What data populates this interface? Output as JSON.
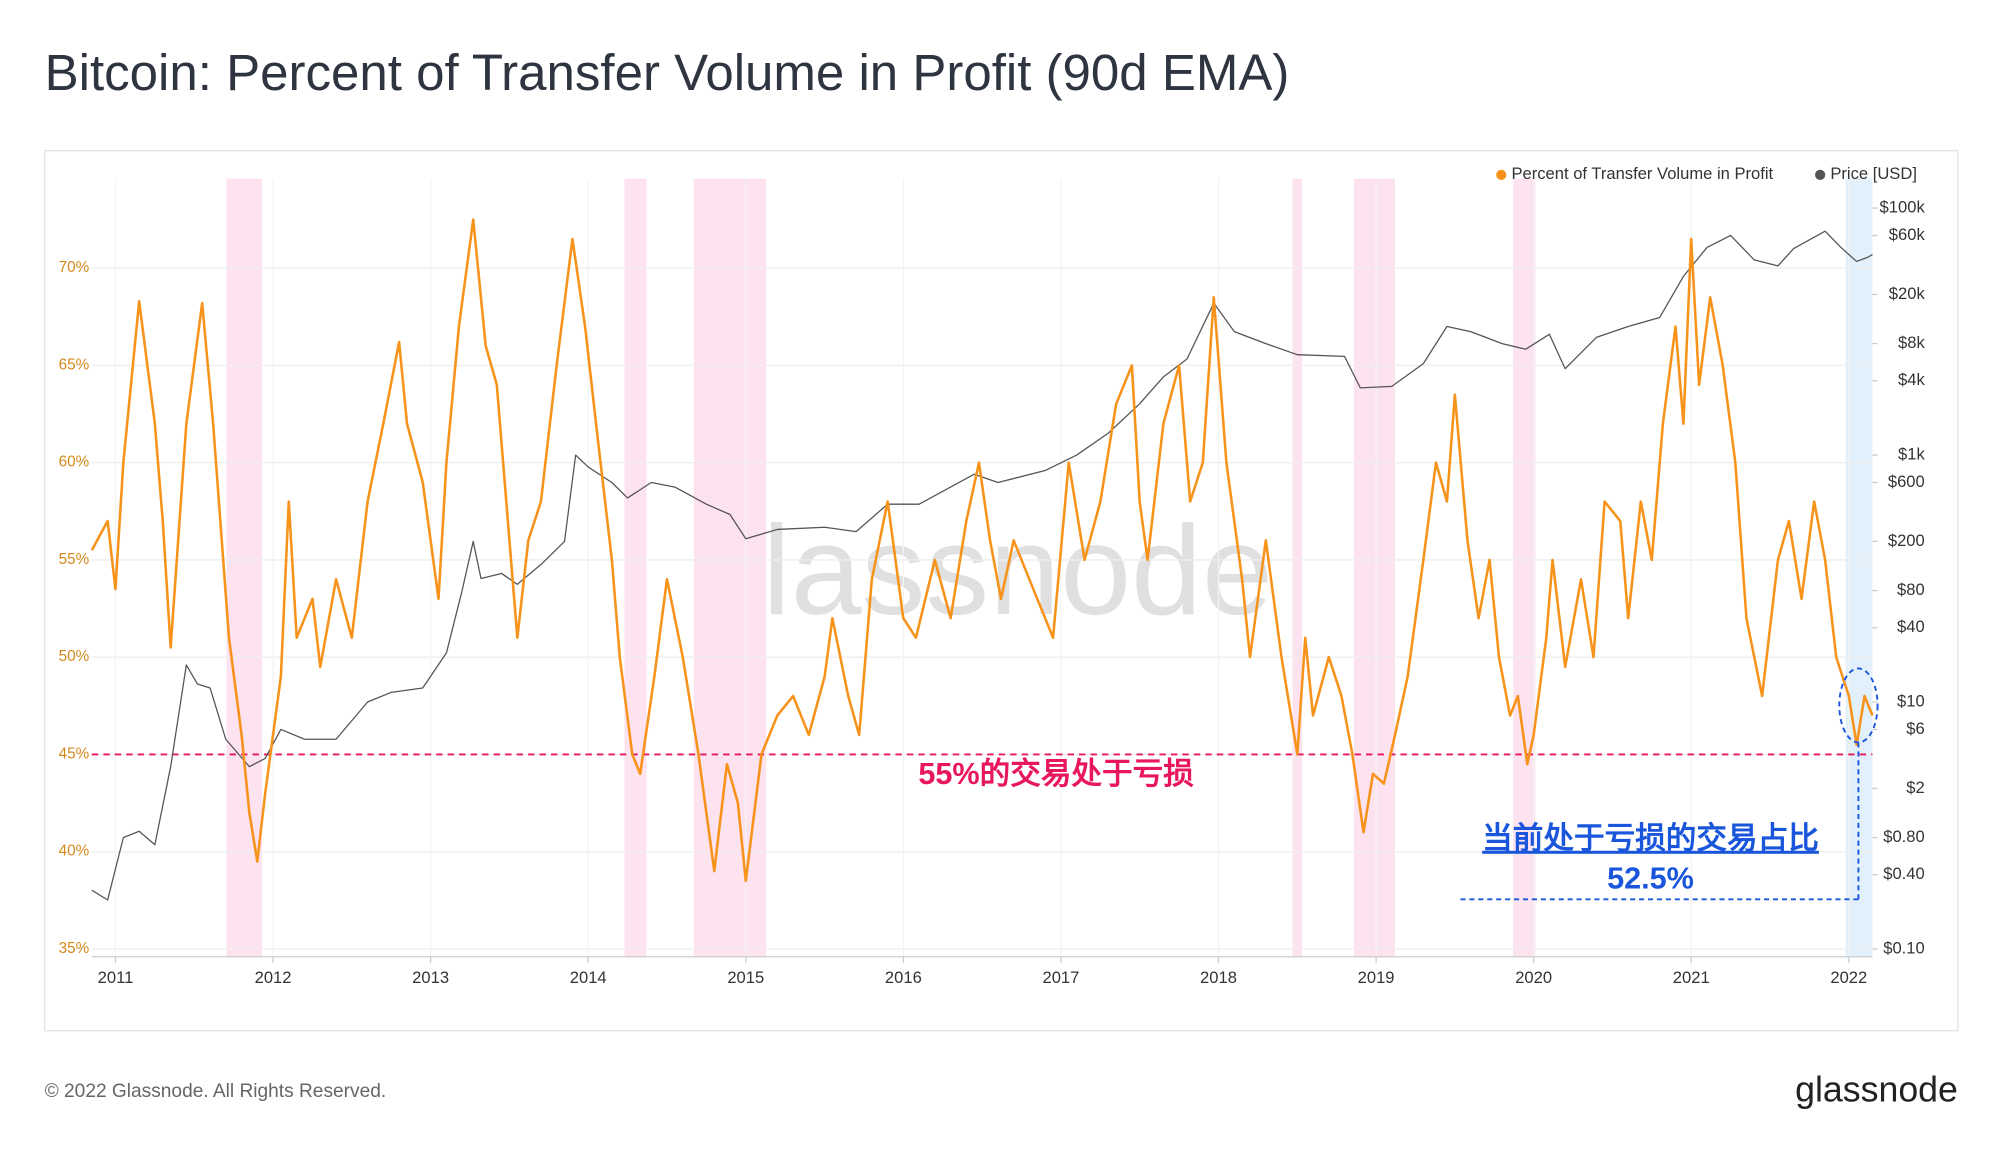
{
  "title": "Bitcoin: Percent of Transfer Volume in Profit (90d EMA)",
  "footer": {
    "copyright": "© 2022 Glassnode. All Rights Reserved.",
    "logo": "glassnode"
  },
  "chart_data": {
    "type": "line",
    "watermark": "glassnode",
    "xlim": [
      2010.85,
      2022.15
    ],
    "xticks": [
      2011,
      2012,
      2013,
      2014,
      2015,
      2016,
      2017,
      2018,
      2019,
      2020,
      2021,
      2022
    ],
    "ylim": [
      34.6,
      74.6
    ],
    "yticks": [
      {
        "value": 35,
        "label": "35%"
      },
      {
        "value": 40,
        "label": "40%"
      },
      {
        "value": 45,
        "label": "45%"
      },
      {
        "value": 50,
        "label": "50%"
      },
      {
        "value": 55,
        "label": "55%"
      },
      {
        "value": 60,
        "label": "60%"
      },
      {
        "value": 65,
        "label": "65%"
      },
      {
        "value": 70,
        "label": "70%"
      }
    ],
    "y2lim": [
      0.0867,
      173000
    ],
    "y2log": true,
    "y2ticks": [
      {
        "value": 0.1,
        "label": "$0.10"
      },
      {
        "value": 0.4,
        "label": "$0.40"
      },
      {
        "value": 0.8,
        "label": "$0.80"
      },
      {
        "value": 2,
        "label": "$2"
      },
      {
        "value": 6,
        "label": "$6"
      },
      {
        "value": 10,
        "label": "$10"
      },
      {
        "value": 40,
        "label": "$40"
      },
      {
        "value": 80,
        "label": "$80"
      },
      {
        "value": 200,
        "label": "$200"
      },
      {
        "value": 600,
        "label": "$600"
      },
      {
        "value": 1000,
        "label": "$1k"
      },
      {
        "value": 4000,
        "label": "$4k"
      },
      {
        "value": 8000,
        "label": "$8k"
      },
      {
        "value": 20000,
        "label": "$20k"
      },
      {
        "value": 60000,
        "label": "$60k"
      },
      {
        "value": 100000,
        "label": "$100k"
      }
    ],
    "grid": true,
    "legend": "top-right",
    "bands": [
      {
        "range": [
          2011.705,
          2011.93
        ],
        "color": "#fde2ef"
      },
      {
        "range": [
          2014.23,
          2014.37
        ],
        "color": "#fde2ef"
      },
      {
        "range": [
          2014.67,
          2015.13
        ],
        "color": "#fde2ef"
      },
      {
        "range": [
          2018.47,
          2018.53
        ],
        "color": "#fde2ef"
      },
      {
        "range": [
          2018.86,
          2019.12
        ],
        "color": "#fde2ef"
      },
      {
        "range": [
          2019.87,
          2020.01
        ],
        "color": "#fde2ef"
      },
      {
        "range": [
          2021.98,
          2022.15
        ],
        "color": "#e1f0fb"
      }
    ],
    "hline": {
      "value": 45,
      "label": "55%的交易处于亏损",
      "color": "#e8175d"
    },
    "callout": {
      "lines": [
        "当前处于亏损的交易占比",
        "52.5%"
      ],
      "color": "#1a56db"
    },
    "series": [
      {
        "name": "Percent of Transfer Volume in Profit",
        "color": "#f7931a",
        "x": [
          2010.85,
          2010.95,
          2011.0,
          2011.05,
          2011.15,
          2011.25,
          2011.3,
          2011.35,
          2011.45,
          2011.55,
          2011.62,
          2011.72,
          2011.8,
          2011.85,
          2011.9,
          2011.95,
          2012.05,
          2012.1,
          2012.15,
          2012.25,
          2012.3,
          2012.4,
          2012.5,
          2012.6,
          2012.7,
          2012.8,
          2012.85,
          2012.95,
          2013.0,
          2013.05,
          2013.1,
          2013.18,
          2013.27,
          2013.35,
          2013.42,
          2013.5,
          2013.55,
          2013.62,
          2013.7,
          2013.8,
          2013.9,
          2013.98,
          2014.05,
          2014.15,
          2014.2,
          2014.28,
          2014.33,
          2014.42,
          2014.5,
          2014.6,
          2014.7,
          2014.8,
          2014.88,
          2014.95,
          2015.0,
          2015.1,
          2015.2,
          2015.3,
          2015.4,
          2015.5,
          2015.55,
          2015.65,
          2015.72,
          2015.8,
          2015.9,
          2016.0,
          2016.08,
          2016.2,
          2016.3,
          2016.4,
          2016.48,
          2016.55,
          2016.62,
          2016.7,
          2016.85,
          2016.95,
          2017.05,
          2017.15,
          2017.25,
          2017.35,
          2017.45,
          2017.5,
          2017.55,
          2017.65,
          2017.75,
          2017.82,
          2017.9,
          2017.97,
          2018.05,
          2018.15,
          2018.2,
          2018.3,
          2018.4,
          2018.5,
          2018.55,
          2018.6,
          2018.7,
          2018.78,
          2018.85,
          2018.92,
          2018.98,
          2019.05,
          2019.12,
          2019.2,
          2019.3,
          2019.38,
          2019.45,
          2019.5,
          2019.58,
          2019.65,
          2019.72,
          2019.78,
          2019.85,
          2019.9,
          2019.96,
          2020.0,
          2020.08,
          2020.12,
          2020.2,
          2020.3,
          2020.38,
          2020.45,
          2020.55,
          2020.6,
          2020.68,
          2020.75,
          2020.82,
          2020.9,
          2020.95,
          2021.0,
          2021.05,
          2021.12,
          2021.2,
          2021.28,
          2021.35,
          2021.45,
          2021.55,
          2021.62,
          2021.7,
          2021.78,
          2021.85,
          2021.92,
          2022.0,
          2022.05,
          2022.1,
          2022.15
        ],
        "values": [
          55.5,
          57,
          53.5,
          60,
          68.3,
          62,
          57,
          50.5,
          62,
          68.2,
          62,
          51,
          46,
          42,
          39.5,
          43,
          49,
          58,
          51,
          53,
          49.5,
          54,
          51,
          58,
          62,
          66.2,
          62,
          59,
          56,
          53,
          60,
          67,
          72.5,
          66,
          64,
          56,
          51,
          56,
          58,
          65,
          71.5,
          67,
          62,
          55,
          50,
          45,
          44,
          49,
          54,
          50,
          45,
          39,
          44.5,
          42.5,
          38.5,
          45,
          47,
          48,
          46,
          49,
          52,
          48,
          46,
          54,
          58,
          52,
          51,
          55,
          52,
          57,
          60,
          56,
          53,
          56,
          53,
          51,
          60,
          55,
          58,
          63,
          65,
          58,
          55,
          62,
          65,
          58,
          60,
          68.5,
          60,
          54,
          50,
          56,
          50,
          45,
          51,
          47,
          50,
          48,
          45,
          41,
          44,
          43.5,
          46,
          49,
          55,
          60,
          58,
          63.5,
          56,
          52,
          55,
          50,
          47,
          48,
          44.5,
          46,
          51,
          55,
          49.5,
          54,
          50,
          58,
          57,
          52,
          58,
          55,
          62,
          67,
          62,
          71.5,
          64,
          68.5,
          65,
          60,
          52,
          48,
          55,
          57,
          53,
          58,
          55,
          50,
          48,
          45.5,
          48,
          47
        ]
      },
      {
        "name": "Price [USD]",
        "color": "#555555",
        "axis": "y2",
        "x": [
          2010.85,
          2010.95,
          2011.05,
          2011.15,
          2011.25,
          2011.35,
          2011.45,
          2011.52,
          2011.6,
          2011.7,
          2011.85,
          2011.95,
          2012.05,
          2012.2,
          2012.4,
          2012.6,
          2012.75,
          2012.95,
          2013.1,
          2013.2,
          2013.27,
          2013.32,
          2013.45,
          2013.55,
          2013.7,
          2013.85,
          2013.92,
          2014.0,
          2014.15,
          2014.25,
          2014.4,
          2014.55,
          2014.75,
          2014.9,
          2015.0,
          2015.2,
          2015.5,
          2015.7,
          2015.9,
          2016.1,
          2016.45,
          2016.6,
          2016.9,
          2017.1,
          2017.3,
          2017.5,
          2017.65,
          2017.8,
          2017.97,
          2018.1,
          2018.3,
          2018.5,
          2018.8,
          2018.9,
          2019.1,
          2019.3,
          2019.45,
          2019.6,
          2019.8,
          2019.95,
          2020.1,
          2020.2,
          2020.4,
          2020.6,
          2020.8,
          2020.95,
          2021.1,
          2021.25,
          2021.4,
          2021.55,
          2021.65,
          2021.85,
          2021.95,
          2022.05,
          2022.12,
          2022.15
        ],
        "values": [
          0.3,
          0.25,
          0.8,
          0.9,
          0.7,
          3,
          20,
          14,
          13,
          5,
          3,
          3.5,
          6,
          5,
          5,
          10,
          12,
          13,
          25,
          80,
          200,
          100,
          110,
          90,
          130,
          200,
          1000,
          800,
          600,
          450,
          600,
          550,
          400,
          330,
          210,
          250,
          260,
          240,
          400,
          400,
          700,
          600,
          750,
          1000,
          1500,
          2600,
          4300,
          6000,
          17000,
          10000,
          8000,
          6500,
          6300,
          3500,
          3600,
          5500,
          11000,
          10000,
          8000,
          7200,
          9500,
          5000,
          9000,
          11000,
          13000,
          28000,
          48000,
          60000,
          38000,
          34000,
          47000,
          65000,
          48000,
          37000,
          40000,
          42000
        ]
      }
    ]
  }
}
